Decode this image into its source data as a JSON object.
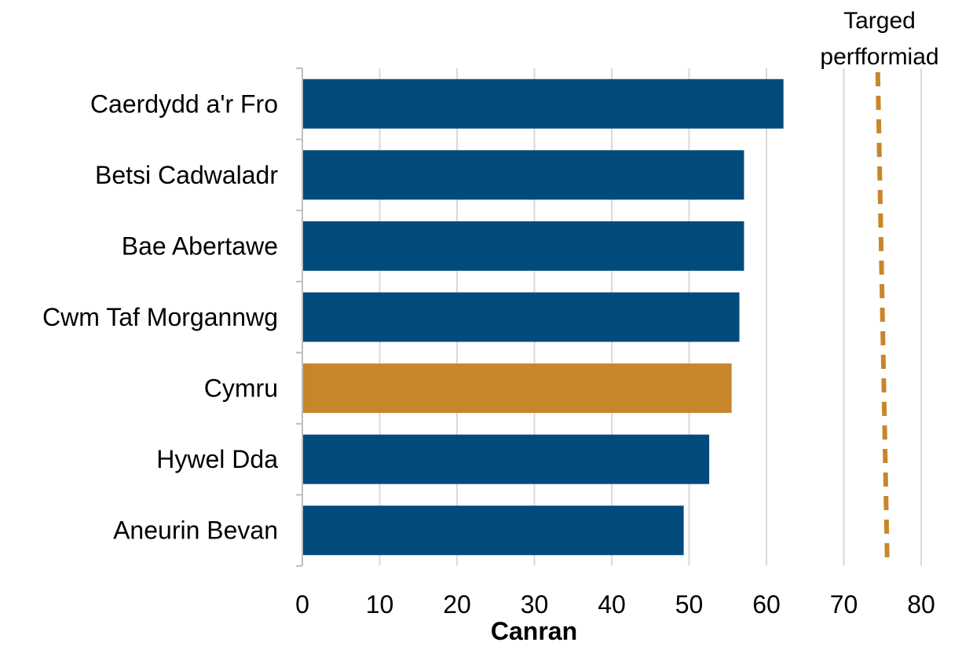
{
  "chart_data": {
    "type": "bar",
    "orientation": "horizontal",
    "categories": [
      "Caerdydd a'r Fro",
      "Betsi Cadwaladr",
      "Bae Abertawe",
      "Cwm Taf Morgannwg",
      "Cymru",
      "Hywel Dda",
      "Aneurin Bevan"
    ],
    "values": [
      62.2,
      57.1,
      57.1,
      56.5,
      55.5,
      52.6,
      49.3
    ],
    "highlight_category": "Cymru",
    "xlabel": "Canran",
    "xlim": [
      0,
      80
    ],
    "xticks": [
      0,
      10,
      20,
      30,
      40,
      50,
      60,
      70,
      80
    ],
    "grid": "vertical",
    "target": {
      "label_line1": "Targed",
      "label_line2": "perfformiad",
      "value": 75
    },
    "colors": {
      "bar": "#004b7c",
      "highlight": "#c8862a",
      "target": "#c8862a",
      "grid": "#d9d9d9",
      "axis": "#bfbfbf"
    }
  }
}
